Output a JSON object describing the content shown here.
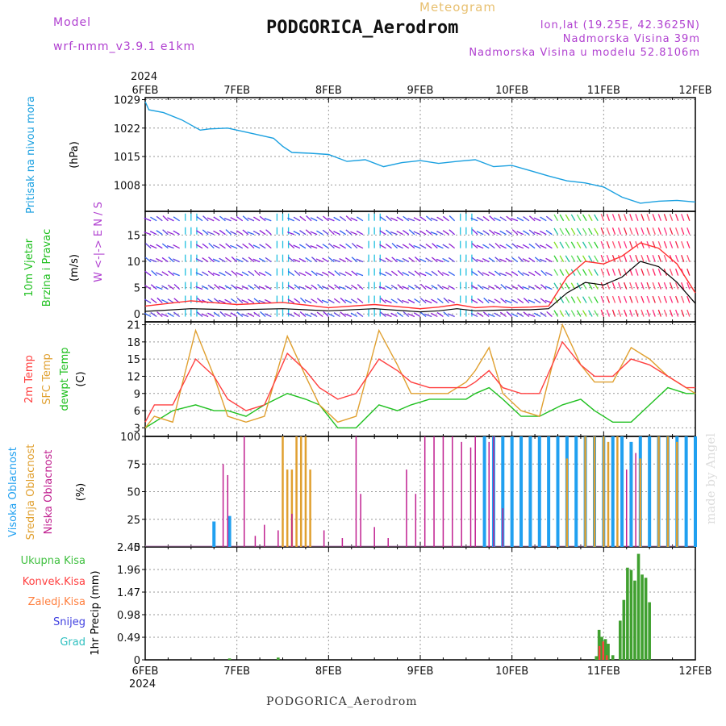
{
  "header": {
    "model_label": "Model",
    "model_name": "wrf-nmm_v3.9.1 e1km",
    "meteogram_label": "Meteogram",
    "station_title": "PODGORICA_Aerodrom",
    "lonlat": "lon,lat (19.25E, 42.3625N)",
    "elevation": "Nadmorska Visina 39m",
    "elevation_model": "Nadmorska Visina u modelu 52.8106m"
  },
  "footer": {
    "station": "PODGORICA_Aerodrom",
    "credit": "made by Angel"
  },
  "time_axis": {
    "year": "2024",
    "day_labels": [
      "6FEB",
      "7FEB",
      "8FEB",
      "9FEB",
      "10FEB",
      "11FEB",
      "12FEB"
    ]
  },
  "colors": {
    "pressure": "#1aa0e0",
    "wind_speed": "#000000",
    "gust": "#ff3030",
    "temp_2m": "#ff4040",
    "temp_sfc": "#e0a030",
    "dewpoint": "#20c020",
    "cloud_high": "#20a0f0",
    "cloud_mid": "#e0a030",
    "cloud_low": "#c02090",
    "precip_total": "#40a030",
    "precip_conv": "#ff4040"
  },
  "chart_data": [
    {
      "type": "line",
      "panel": "pressure",
      "ylabel_rotated": "Pritisak na nivou mora",
      "unit": "(hPa)",
      "yticks": [
        1008,
        1015,
        1022,
        1029
      ],
      "ylim": [
        1001.5,
        1029.5
      ],
      "x_days": [
        0,
        0.04,
        0.2,
        0.4,
        0.6,
        0.7,
        0.9,
        1.0,
        1.2,
        1.4,
        1.5,
        1.6,
        1.8,
        2.0,
        2.2,
        2.4,
        2.6,
        2.8,
        3.0,
        3.2,
        3.4,
        3.6,
        3.8,
        4.0,
        4.2,
        4.4,
        4.6,
        4.8,
        5.0,
        5.2,
        5.4,
        5.6,
        5.8,
        6.0
      ],
      "values": [
        1028.5,
        1026.5,
        1025.8,
        1024.0,
        1021.5,
        1021.8,
        1022.0,
        1021.5,
        1020.5,
        1019.5,
        1017.5,
        1016.0,
        1015.8,
        1015.5,
        1013.8,
        1014.2,
        1012.5,
        1013.5,
        1014.0,
        1013.3,
        1013.8,
        1014.2,
        1012.5,
        1012.8,
        1011.5,
        1010.2,
        1009.0,
        1008.5,
        1007.5,
        1005.0,
        1003.5,
        1004.0,
        1004.2,
        1003.8
      ]
    },
    {
      "type": "line",
      "panel": "wind",
      "ylabel_rotated": [
        "10m Vjetar",
        "Brzina i Pravac"
      ],
      "unit": "(m/s)",
      "compass": "W <-|-> E   N / S",
      "yticks": [
        0,
        5,
        10,
        15
      ],
      "ylim": [
        -1.5,
        19.5
      ],
      "series": [
        {
          "name": "speed",
          "x_days": [
            0,
            0.5,
            1.0,
            1.5,
            2.0,
            2.5,
            3.0,
            3.2,
            3.4,
            3.6,
            3.8,
            4.0,
            4.2,
            4.4,
            4.6,
            4.8,
            5.0,
            5.2,
            5.4,
            5.6,
            5.8,
            6.0
          ],
          "values": [
            0.5,
            1.0,
            0.8,
            1.0,
            0.6,
            1.0,
            0.4,
            0.6,
            1.0,
            0.6,
            0.7,
            0.8,
            0.8,
            1.0,
            4.0,
            6.0,
            5.5,
            7.0,
            10.0,
            9.0,
            6.0,
            2.0
          ]
        },
        {
          "name": "gust",
          "x_days": [
            0,
            0.5,
            1.0,
            1.5,
            2.0,
            2.5,
            3.0,
            3.2,
            3.4,
            3.6,
            3.8,
            4.0,
            4.2,
            4.4,
            4.6,
            4.8,
            5.0,
            5.2,
            5.4,
            5.6,
            5.8,
            6.0
          ],
          "values": [
            1.5,
            2.5,
            1.8,
            2.2,
            1.2,
            1.8,
            1.0,
            1.3,
            1.8,
            1.2,
            1.4,
            1.2,
            1.3,
            1.5,
            7.0,
            10.0,
            9.5,
            11.0,
            13.5,
            12.5,
            9.5,
            4.0
          ]
        }
      ]
    },
    {
      "type": "line",
      "panel": "temperature",
      "ylabel_rotated": [
        "2m Temp",
        "SFC Temp",
        "dewpt Temp"
      ],
      "unit": "(C)",
      "yticks": [
        3,
        6,
        9,
        12,
        15,
        18,
        21
      ],
      "ylim": [
        1.5,
        21.5
      ],
      "series": [
        {
          "name": "2m Temp",
          "x_days": [
            0,
            0.1,
            0.3,
            0.55,
            0.75,
            0.9,
            1.1,
            1.3,
            1.55,
            1.75,
            1.9,
            2.1,
            2.3,
            2.55,
            2.75,
            2.9,
            3.1,
            3.3,
            3.5,
            3.6,
            3.75,
            3.9,
            4.1,
            4.3,
            4.55,
            4.75,
            4.9,
            5.1,
            5.3,
            5.5,
            5.7,
            5.9,
            6.0
          ],
          "values": [
            4,
            7,
            7,
            15,
            12,
            8,
            6,
            7,
            16,
            13,
            10,
            8,
            9,
            15,
            13,
            11,
            10,
            10,
            10,
            11,
            13,
            10,
            9,
            9,
            18,
            14,
            12,
            12,
            15,
            14,
            12,
            10,
            10
          ]
        },
        {
          "name": "SFC Temp",
          "x_days": [
            0,
            0.1,
            0.3,
            0.55,
            0.75,
            0.9,
            1.1,
            1.3,
            1.55,
            1.75,
            1.9,
            2.1,
            2.3,
            2.55,
            2.75,
            2.9,
            3.1,
            3.3,
            3.5,
            3.6,
            3.75,
            3.9,
            4.1,
            4.3,
            4.55,
            4.75,
            4.9,
            5.1,
            5.3,
            5.5,
            5.7,
            5.9,
            6.0
          ],
          "values": [
            3,
            5,
            4,
            20,
            12,
            5,
            4,
            5,
            19,
            12,
            7,
            4,
            5,
            20,
            14,
            9,
            9,
            9,
            11,
            13,
            17,
            9,
            6,
            5,
            21,
            14,
            11,
            11,
            17,
            15,
            12,
            10,
            9
          ]
        },
        {
          "name": "dewpt Temp",
          "x_days": [
            0,
            0.1,
            0.3,
            0.55,
            0.75,
            0.9,
            1.1,
            1.3,
            1.55,
            1.75,
            1.9,
            2.1,
            2.3,
            2.55,
            2.75,
            2.9,
            3.1,
            3.3,
            3.5,
            3.6,
            3.75,
            3.9,
            4.1,
            4.3,
            4.55,
            4.75,
            4.9,
            5.1,
            5.3,
            5.5,
            5.7,
            5.9,
            6.0
          ],
          "values": [
            3,
            4,
            6,
            7,
            6,
            6,
            5,
            7,
            9,
            8,
            7,
            3,
            3,
            7,
            6,
            7,
            8,
            8,
            8,
            9,
            10,
            8,
            5,
            5,
            7,
            8,
            6,
            4,
            4,
            7,
            10,
            9,
            9
          ]
        }
      ]
    },
    {
      "type": "bar",
      "panel": "clouds",
      "ylabel_rotated": [
        "Visoka Oblacnost",
        "Srednja Oblacnost",
        "Niska Oblacnost"
      ],
      "unit": "(%)",
      "yticks": [
        0,
        25,
        50,
        75,
        100
      ],
      "ylim": [
        0,
        100
      ],
      "series": [
        {
          "name": "Visoka Oblacnost",
          "bars": [
            [
              0.75,
              23
            ],
            [
              0.92,
              28
            ],
            [
              3.7,
              100
            ],
            [
              3.8,
              100
            ],
            [
              3.9,
              100
            ],
            [
              4.0,
              100
            ],
            [
              4.1,
              100
            ],
            [
              4.2,
              100
            ],
            [
              4.3,
              100
            ],
            [
              4.4,
              100
            ],
            [
              4.5,
              100
            ],
            [
              4.6,
              100
            ],
            [
              4.7,
              100
            ],
            [
              4.8,
              100
            ],
            [
              4.9,
              100
            ],
            [
              5.0,
              100
            ],
            [
              5.1,
              100
            ],
            [
              5.2,
              100
            ],
            [
              5.3,
              95
            ],
            [
              5.4,
              100
            ],
            [
              5.5,
              100
            ],
            [
              5.6,
              100
            ],
            [
              5.7,
              100
            ],
            [
              5.8,
              100
            ],
            [
              5.9,
              100
            ],
            [
              6.0,
              100
            ]
          ]
        },
        {
          "name": "Srednja Oblacnost",
          "bars": [
            [
              1.5,
              100
            ],
            [
              1.55,
              70
            ],
            [
              1.6,
              70
            ],
            [
              1.65,
              100
            ],
            [
              1.7,
              100
            ],
            [
              1.75,
              100
            ],
            [
              1.8,
              70
            ],
            [
              4.6,
              80
            ],
            [
              4.8,
              100
            ],
            [
              4.9,
              100
            ],
            [
              5.0,
              100
            ],
            [
              5.05,
              95
            ],
            [
              5.15,
              100
            ],
            [
              5.4,
              80
            ],
            [
              5.6,
              100
            ],
            [
              5.7,
              100
            ],
            [
              5.8,
              95
            ]
          ]
        },
        {
          "name": "Niska Oblacnost",
          "bars": [
            [
              0.85,
              75
            ],
            [
              0.9,
              65
            ],
            [
              1.08,
              100
            ],
            [
              1.2,
              10
            ],
            [
              1.3,
              20
            ],
            [
              1.45,
              15
            ],
            [
              1.6,
              30
            ],
            [
              1.95,
              15
            ],
            [
              2.15,
              8
            ],
            [
              2.3,
              100
            ],
            [
              2.35,
              48
            ],
            [
              2.5,
              18
            ],
            [
              2.65,
              8
            ],
            [
              2.85,
              70
            ],
            [
              2.95,
              48
            ],
            [
              3.05,
              100
            ],
            [
              3.15,
              100
            ],
            [
              3.25,
              100
            ],
            [
              3.35,
              100
            ],
            [
              3.45,
              95
            ],
            [
              3.55,
              90
            ],
            [
              3.6,
              100
            ],
            [
              3.75,
              95
            ],
            [
              3.8,
              100
            ],
            [
              3.9,
              35
            ],
            [
              5.25,
              70
            ],
            [
              5.35,
              85
            ]
          ]
        }
      ]
    },
    {
      "type": "bar",
      "panel": "precipitation",
      "legend": [
        "Ukupna Kisa",
        "Konvek.Kisa",
        "Zaledj.Kisa",
        "Snijeg",
        "Grad"
      ],
      "ylabel_rotated": "1hr Precip",
      "unit": "(mm)",
      "yticks": [
        0,
        0.49,
        0.98,
        1.47,
        1.96,
        2.45
      ],
      "ylim": [
        0,
        2.45
      ],
      "series": [
        {
          "name": "Ukupna Kisa",
          "bars": [
            [
              0.92,
              0.03
            ],
            [
              1.45,
              0.05
            ],
            [
              4.92,
              0.08
            ],
            [
              4.95,
              0.65
            ],
            [
              4.98,
              0.5
            ],
            [
              5.02,
              0.45
            ],
            [
              5.05,
              0.35
            ],
            [
              5.1,
              0.1
            ],
            [
              5.18,
              0.85
            ],
            [
              5.22,
              1.3
            ],
            [
              5.26,
              2.0
            ],
            [
              5.3,
              1.95
            ],
            [
              5.34,
              1.72
            ],
            [
              5.38,
              2.3
            ],
            [
              5.42,
              1.85
            ],
            [
              5.46,
              1.78
            ],
            [
              5.5,
              1.25
            ]
          ]
        },
        {
          "name": "Konvek.Kisa",
          "bars": [
            [
              4.96,
              0.3
            ],
            [
              5.0,
              0.4
            ],
            [
              5.04,
              0.1
            ]
          ]
        }
      ]
    }
  ]
}
